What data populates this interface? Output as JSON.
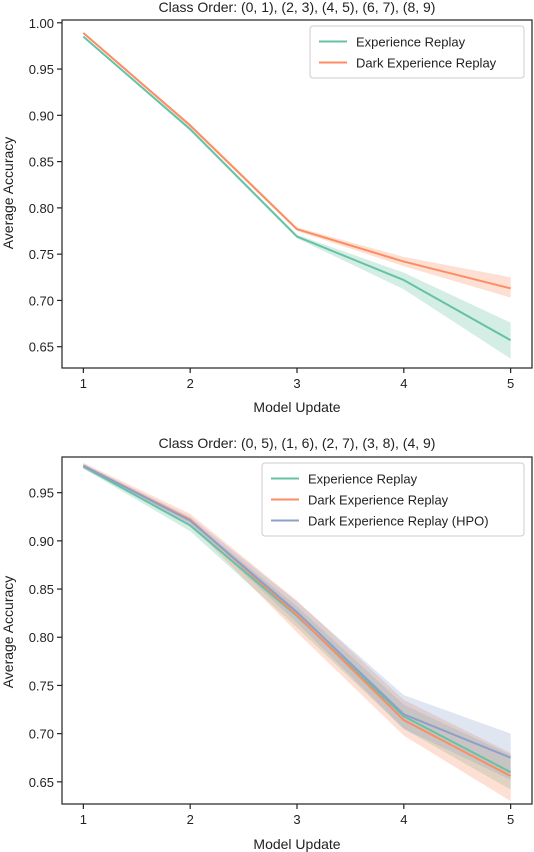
{
  "chart_data": [
    {
      "type": "line",
      "title": "Class Order: (0, 1), (2, 3), (4, 5), (6, 7), (8, 9)",
      "xlabel": "Model Update",
      "ylabel": "Average Accuracy",
      "x": [
        1,
        2,
        3,
        4,
        5
      ],
      "xticks": [
        "1",
        "2",
        "3",
        "4",
        "5"
      ],
      "yticks": [
        "0.65",
        "0.70",
        "0.75",
        "0.80",
        "0.85",
        "0.90",
        "0.95",
        "1.00"
      ],
      "xlim": [
        0.8,
        5.2
      ],
      "ylim": [
        0.627,
        1.003
      ],
      "grid": false,
      "legend": "top-right",
      "series": [
        {
          "name": "Experience Replay",
          "color": "#66c2a5",
          "values": [
            0.985,
            0.885,
            0.769,
            0.722,
            0.657
          ],
          "lower": [
            0.984,
            0.883,
            0.767,
            0.712,
            0.637
          ],
          "upper": [
            0.986,
            0.887,
            0.771,
            0.73,
            0.676
          ]
        },
        {
          "name": "Dark Experience Replay",
          "color": "#fc8d62",
          "values": [
            0.989,
            0.889,
            0.777,
            0.742,
            0.713
          ],
          "lower": [
            0.988,
            0.887,
            0.775,
            0.737,
            0.703
          ],
          "upper": [
            0.99,
            0.891,
            0.779,
            0.747,
            0.725
          ]
        }
      ]
    },
    {
      "type": "line",
      "title": "Class Order: (0, 5), (1, 6), (2, 7), (3, 8), (4, 9)",
      "xlabel": "Model Update",
      "ylabel": "Average Accuracy",
      "x": [
        1,
        2,
        3,
        4,
        5
      ],
      "xticks": [
        "1",
        "2",
        "3",
        "4",
        "5"
      ],
      "yticks": [
        "0.65",
        "0.70",
        "0.75",
        "0.80",
        "0.85",
        "0.90",
        "0.95"
      ],
      "xlim": [
        0.8,
        5.2
      ],
      "ylim": [
        0.627,
        0.987
      ],
      "grid": false,
      "legend": "top-right",
      "series": [
        {
          "name": "Experience Replay",
          "color": "#66c2a5",
          "values": [
            0.977,
            0.916,
            0.822,
            0.718,
            0.66
          ],
          "lower": [
            0.975,
            0.91,
            0.81,
            0.705,
            0.642
          ],
          "upper": [
            0.979,
            0.922,
            0.832,
            0.73,
            0.678
          ]
        },
        {
          "name": "Dark Experience Replay",
          "color": "#fc8d62",
          "values": [
            0.978,
            0.922,
            0.823,
            0.714,
            0.656
          ],
          "lower": [
            0.975,
            0.917,
            0.805,
            0.698,
            0.63
          ],
          "upper": [
            0.981,
            0.928,
            0.838,
            0.735,
            0.68
          ]
        },
        {
          "name": "Dark Experience Replay (HPO)",
          "color": "#8da0cb",
          "values": [
            0.978,
            0.921,
            0.826,
            0.72,
            0.675
          ],
          "lower": [
            0.976,
            0.918,
            0.815,
            0.705,
            0.652
          ],
          "upper": [
            0.98,
            0.925,
            0.837,
            0.74,
            0.7
          ]
        }
      ]
    }
  ]
}
